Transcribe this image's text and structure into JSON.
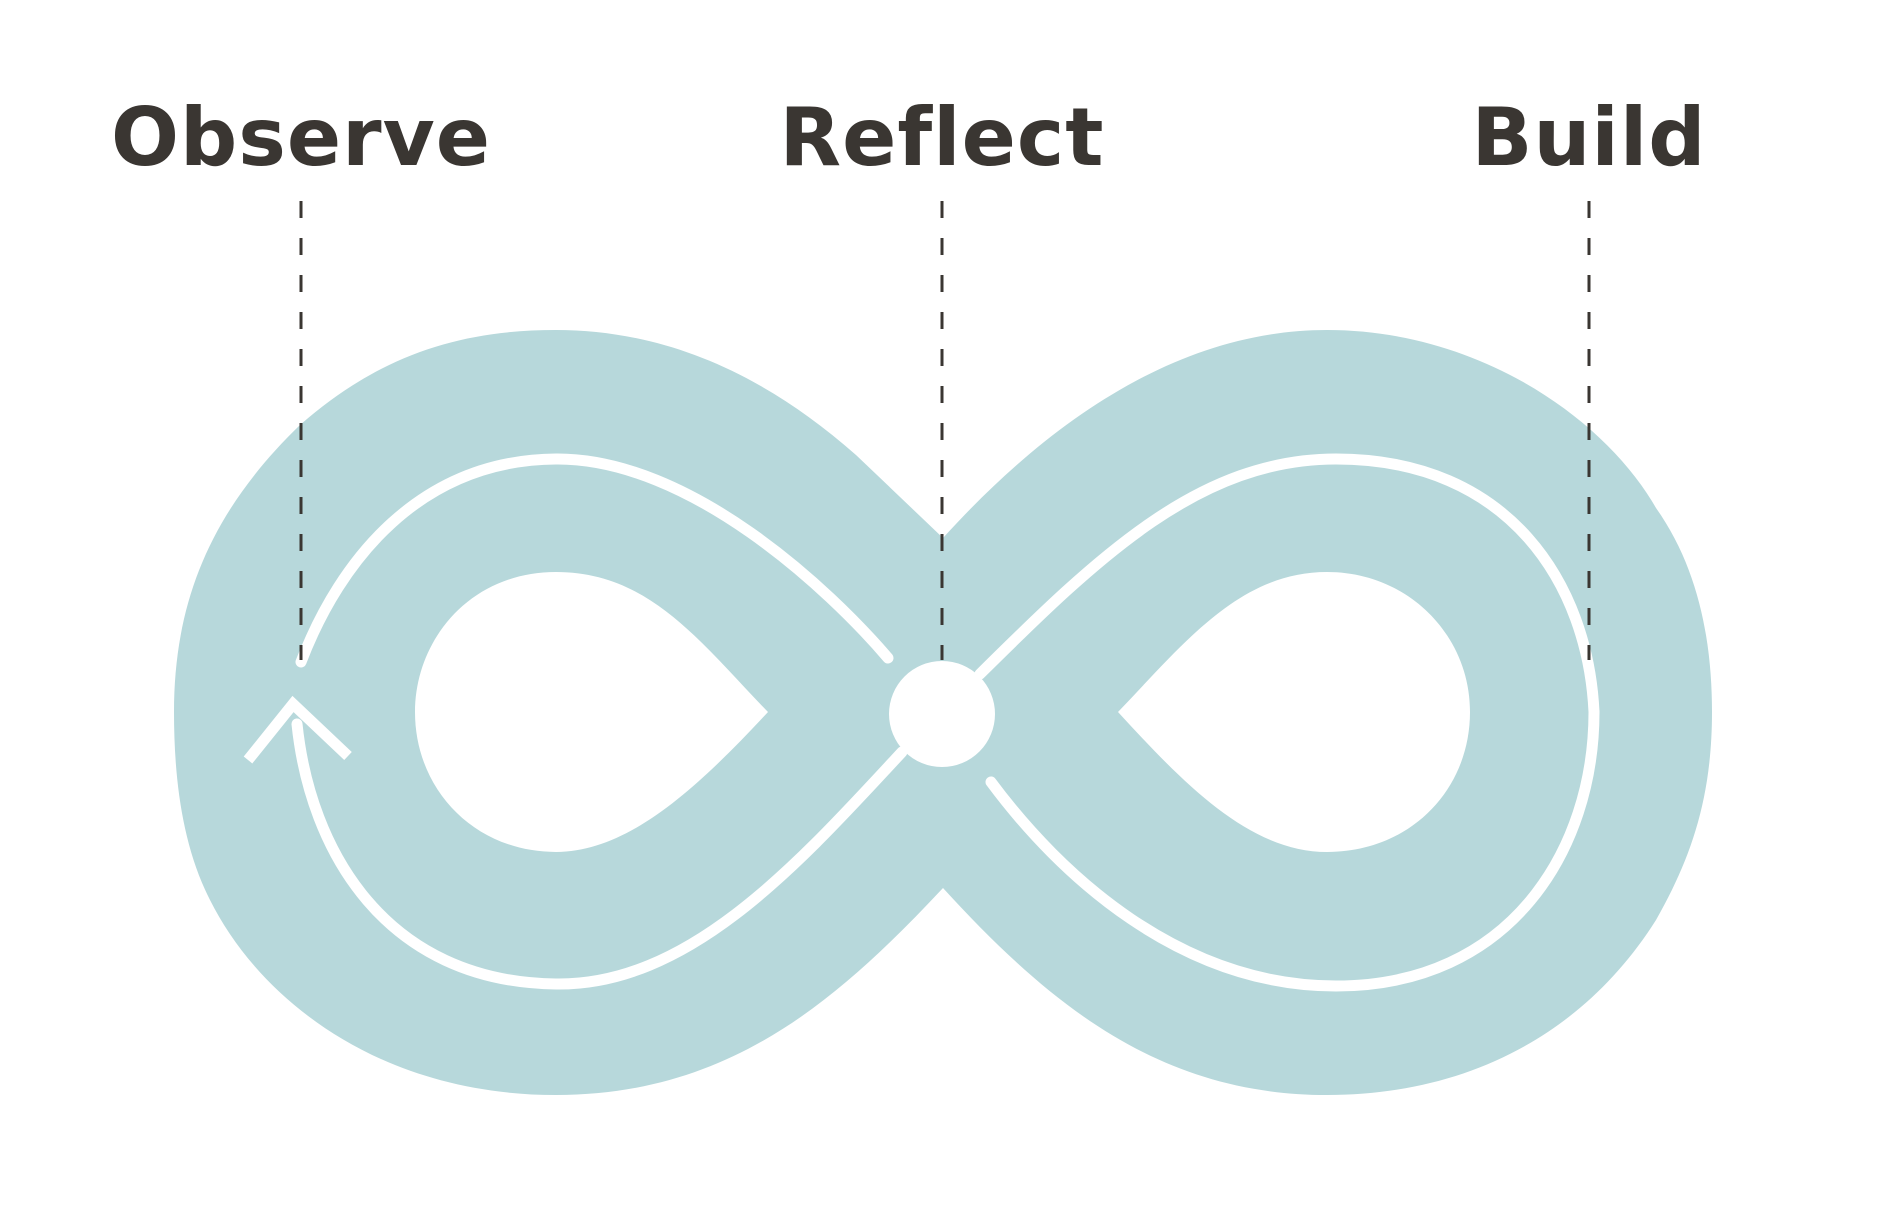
{
  "stages": [
    {
      "id": "observe",
      "label": "Observe"
    },
    {
      "id": "reflect",
      "label": "Reflect"
    },
    {
      "id": "build",
      "label": "Build"
    }
  ],
  "colors": {
    "loop_fill": "#b7d8db",
    "path_stroke": "#ffffff",
    "label_text": "#3a3632",
    "dashed_line": "#3a3632",
    "background": "#ffffff"
  },
  "icons": {
    "direction_marker": "arrowhead-up-icon",
    "center_node": "circle-node-icon"
  }
}
